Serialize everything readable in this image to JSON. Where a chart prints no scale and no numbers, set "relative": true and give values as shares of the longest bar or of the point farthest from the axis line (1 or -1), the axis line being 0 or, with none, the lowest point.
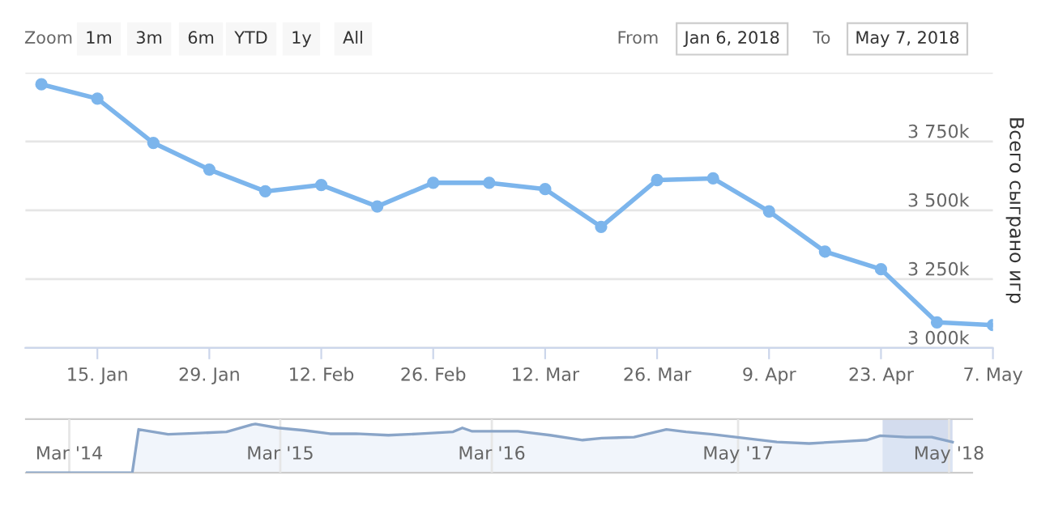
{
  "chart_data": [
    {
      "type": "line",
      "ylabel": "Всего сыграно игр",
      "x": [
        "2018-01-08",
        "2018-01-15",
        "2018-01-22",
        "2018-01-29",
        "2018-02-05",
        "2018-02-12",
        "2018-02-19",
        "2018-02-26",
        "2018-03-05",
        "2018-03-12",
        "2018-03-19",
        "2018-03-26",
        "2018-04-02",
        "2018-04-09",
        "2018-04-16",
        "2018-04-23",
        "2018-04-30",
        "2018-05-07"
      ],
      "series": [
        {
          "color": "#7cb5ec",
          "values": [
            3958,
            3906,
            3745,
            3648,
            3569,
            3592,
            3514,
            3600,
            3600,
            3577,
            3440,
            3610,
            3616,
            3496,
            3350,
            3286,
            3093,
            3083
          ]
        }
      ],
      "xlim": [
        "2018-01-06",
        "2018-05-07"
      ],
      "xticks": [
        {
          "value": "2018-01-15",
          "label": "15. Jan"
        },
        {
          "value": "2018-01-29",
          "label": "29. Jan"
        },
        {
          "value": "2018-02-12",
          "label": "12. Feb"
        },
        {
          "value": "2018-02-26",
          "label": "26. Feb"
        },
        {
          "value": "2018-03-12",
          "label": "12. Mar"
        },
        {
          "value": "2018-03-26",
          "label": "26. Mar"
        },
        {
          "value": "2018-04-09",
          "label": "9. Apr"
        },
        {
          "value": "2018-04-23",
          "label": "23. Apr"
        },
        {
          "value": "2018-05-07",
          "label": "7. May"
        }
      ],
      "ylim": [
        3000,
        4000
      ],
      "yticks": [
        {
          "value": 3000,
          "label": "3 000k"
        },
        {
          "value": 3250,
          "label": "3 250k"
        },
        {
          "value": 3500,
          "label": "3 500k"
        },
        {
          "value": 3750,
          "label": "3 750k"
        },
        {
          "value": 4000,
          "label": null
        }
      ],
      "grid": "y",
      "marker": "circle",
      "line_style": "solid",
      "legend": false,
      "annotations": [
        "Zoom",
        "1m",
        "3m",
        "6m",
        "YTD",
        "1y",
        "All",
        "From",
        "Jan 6, 2018",
        "To",
        "May 7, 2018"
      ]
    },
    {
      "type": "area",
      "relative": true,
      "x": [
        "2013-12-16",
        "2014-06-18",
        "2014-06-29",
        "2014-08-19",
        "2014-10-03",
        "2014-11-28",
        "2015-01-11",
        "2015-01-17",
        "2015-02-25",
        "2015-04-11",
        "2015-05-26",
        "2015-07-10",
        "2015-09-04",
        "2015-10-30",
        "2015-12-25",
        "2016-01-10",
        "2016-01-27",
        "2016-04-15",
        "2016-06-10",
        "2016-08-05",
        "2016-09-07",
        "2016-11-02",
        "2016-12-28",
        "2017-01-31",
        "2017-03-17",
        "2017-05-12",
        "2017-07-07",
        "2017-09-01",
        "2017-10-27",
        "2017-12-10",
        "2018-01-02",
        "2018-02-16",
        "2018-04-01",
        "2018-05-07"
      ],
      "series": [
        {
          "color": "#8aa5c8",
          "values": [
            0,
            0,
            0.89,
            0.79,
            0.81,
            0.84,
            0.99,
            1,
            0.92,
            0.87,
            0.8,
            0.8,
            0.77,
            0.8,
            0.84,
            0.92,
            0.85,
            0.85,
            0.77,
            0.67,
            0.71,
            0.73,
            0.89,
            0.84,
            0.79,
            0.71,
            0.63,
            0.6,
            0.64,
            0.67,
            0.76,
            0.73,
            0.73,
            0.63
          ]
        }
      ],
      "xlim": [
        "2013-12-16",
        "2018-06-10"
      ],
      "xticks": [
        {
          "value": "2014-03-01",
          "label": "Mar '14"
        },
        {
          "value": "2015-03-01",
          "label": "Mar '15"
        },
        {
          "value": "2016-03-01",
          "label": "Mar '16"
        },
        {
          "value": "2017-05-01",
          "label": "May '17"
        },
        {
          "value": "2018-05-01",
          "label": "May '18"
        }
      ],
      "bands": [
        {
          "axis": "x",
          "from": "2018-01-06",
          "to": "2018-05-07",
          "color": "#c8d3ea"
        }
      ],
      "grid": "x",
      "legend": false
    }
  ]
}
